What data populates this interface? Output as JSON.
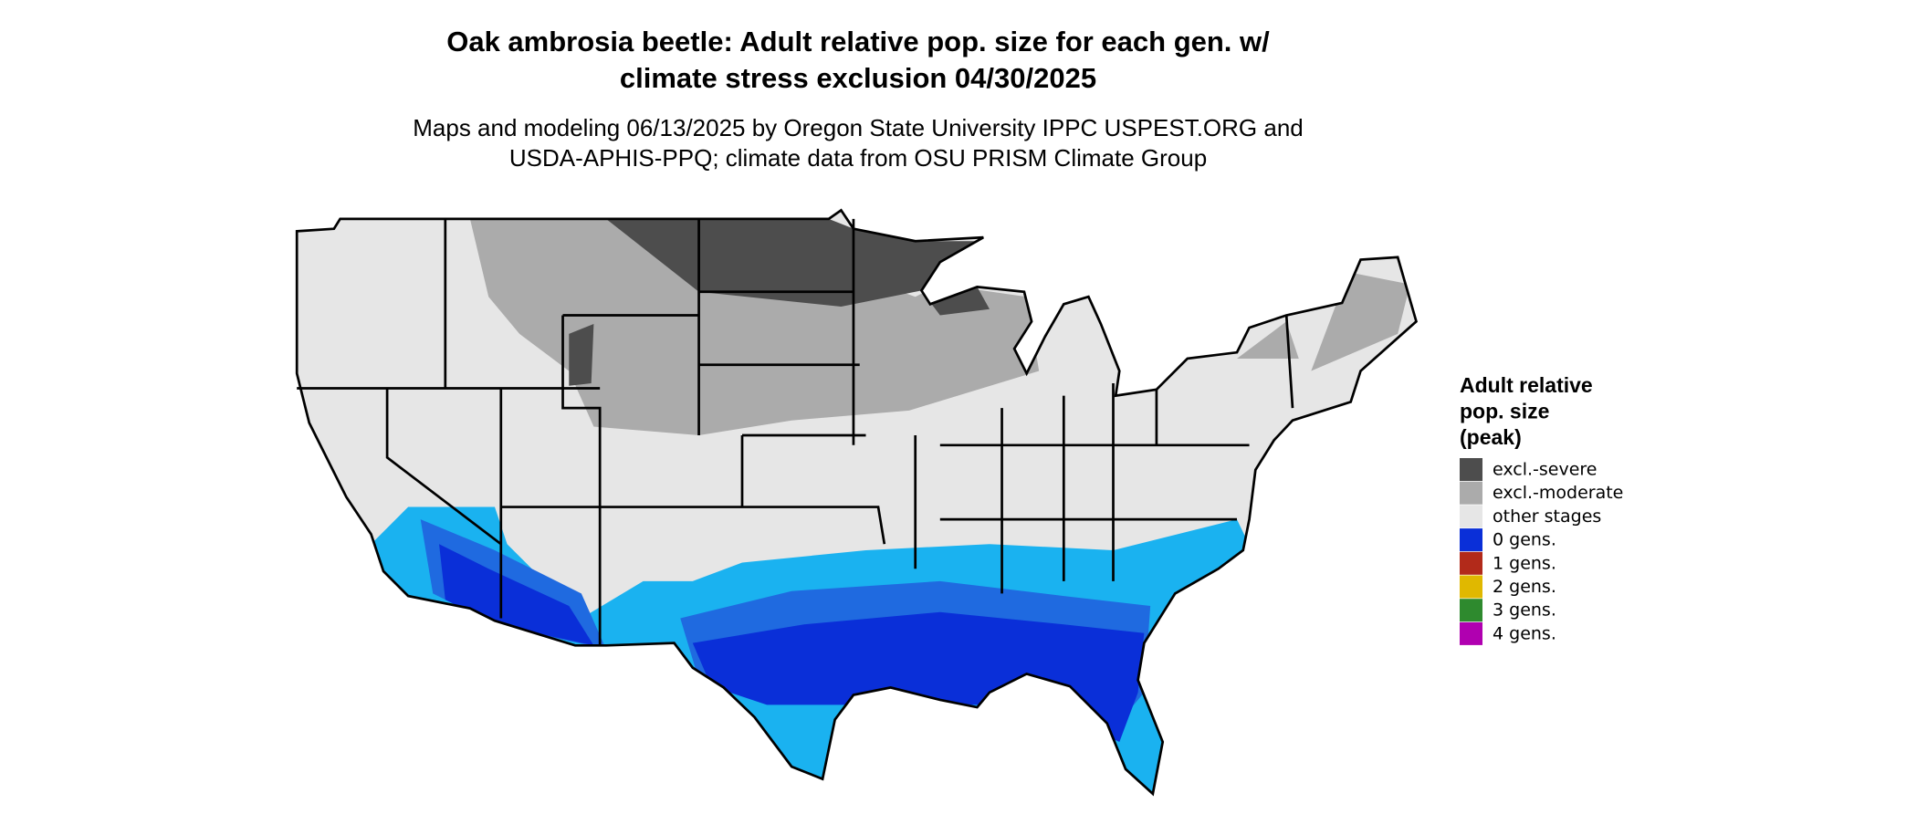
{
  "title": [
    "Oak ambrosia beetle: Adult relative pop. size for each gen. w/",
    "climate stress exclusion 04/30/2025"
  ],
  "subtitle": [
    "Maps and modeling 06/13/2025 by Oregon State University IPPC USPEST.ORG and",
    "USDA-APHIS-PPQ; climate data from OSU PRISM Climate Group"
  ],
  "legend": {
    "title": [
      "Adult relative",
      "pop. size",
      "(peak)"
    ],
    "items": [
      {
        "label": "excl.-severe",
        "color": "#4d4d4d"
      },
      {
        "label": "excl.-moderate",
        "color": "#ababab"
      },
      {
        "label": "other stages",
        "color": "#e6e6e6"
      },
      {
        "label": "0 gens.",
        "color": "#0a2fd8"
      },
      {
        "label": "1 gens.",
        "color": "#b22a1a"
      },
      {
        "label": "2 gens.",
        "color": "#e0b800"
      },
      {
        "label": "3 gens.",
        "color": "#2e8a2e"
      },
      {
        "label": "4 gens.",
        "color": "#b000b0"
      }
    ]
  }
}
